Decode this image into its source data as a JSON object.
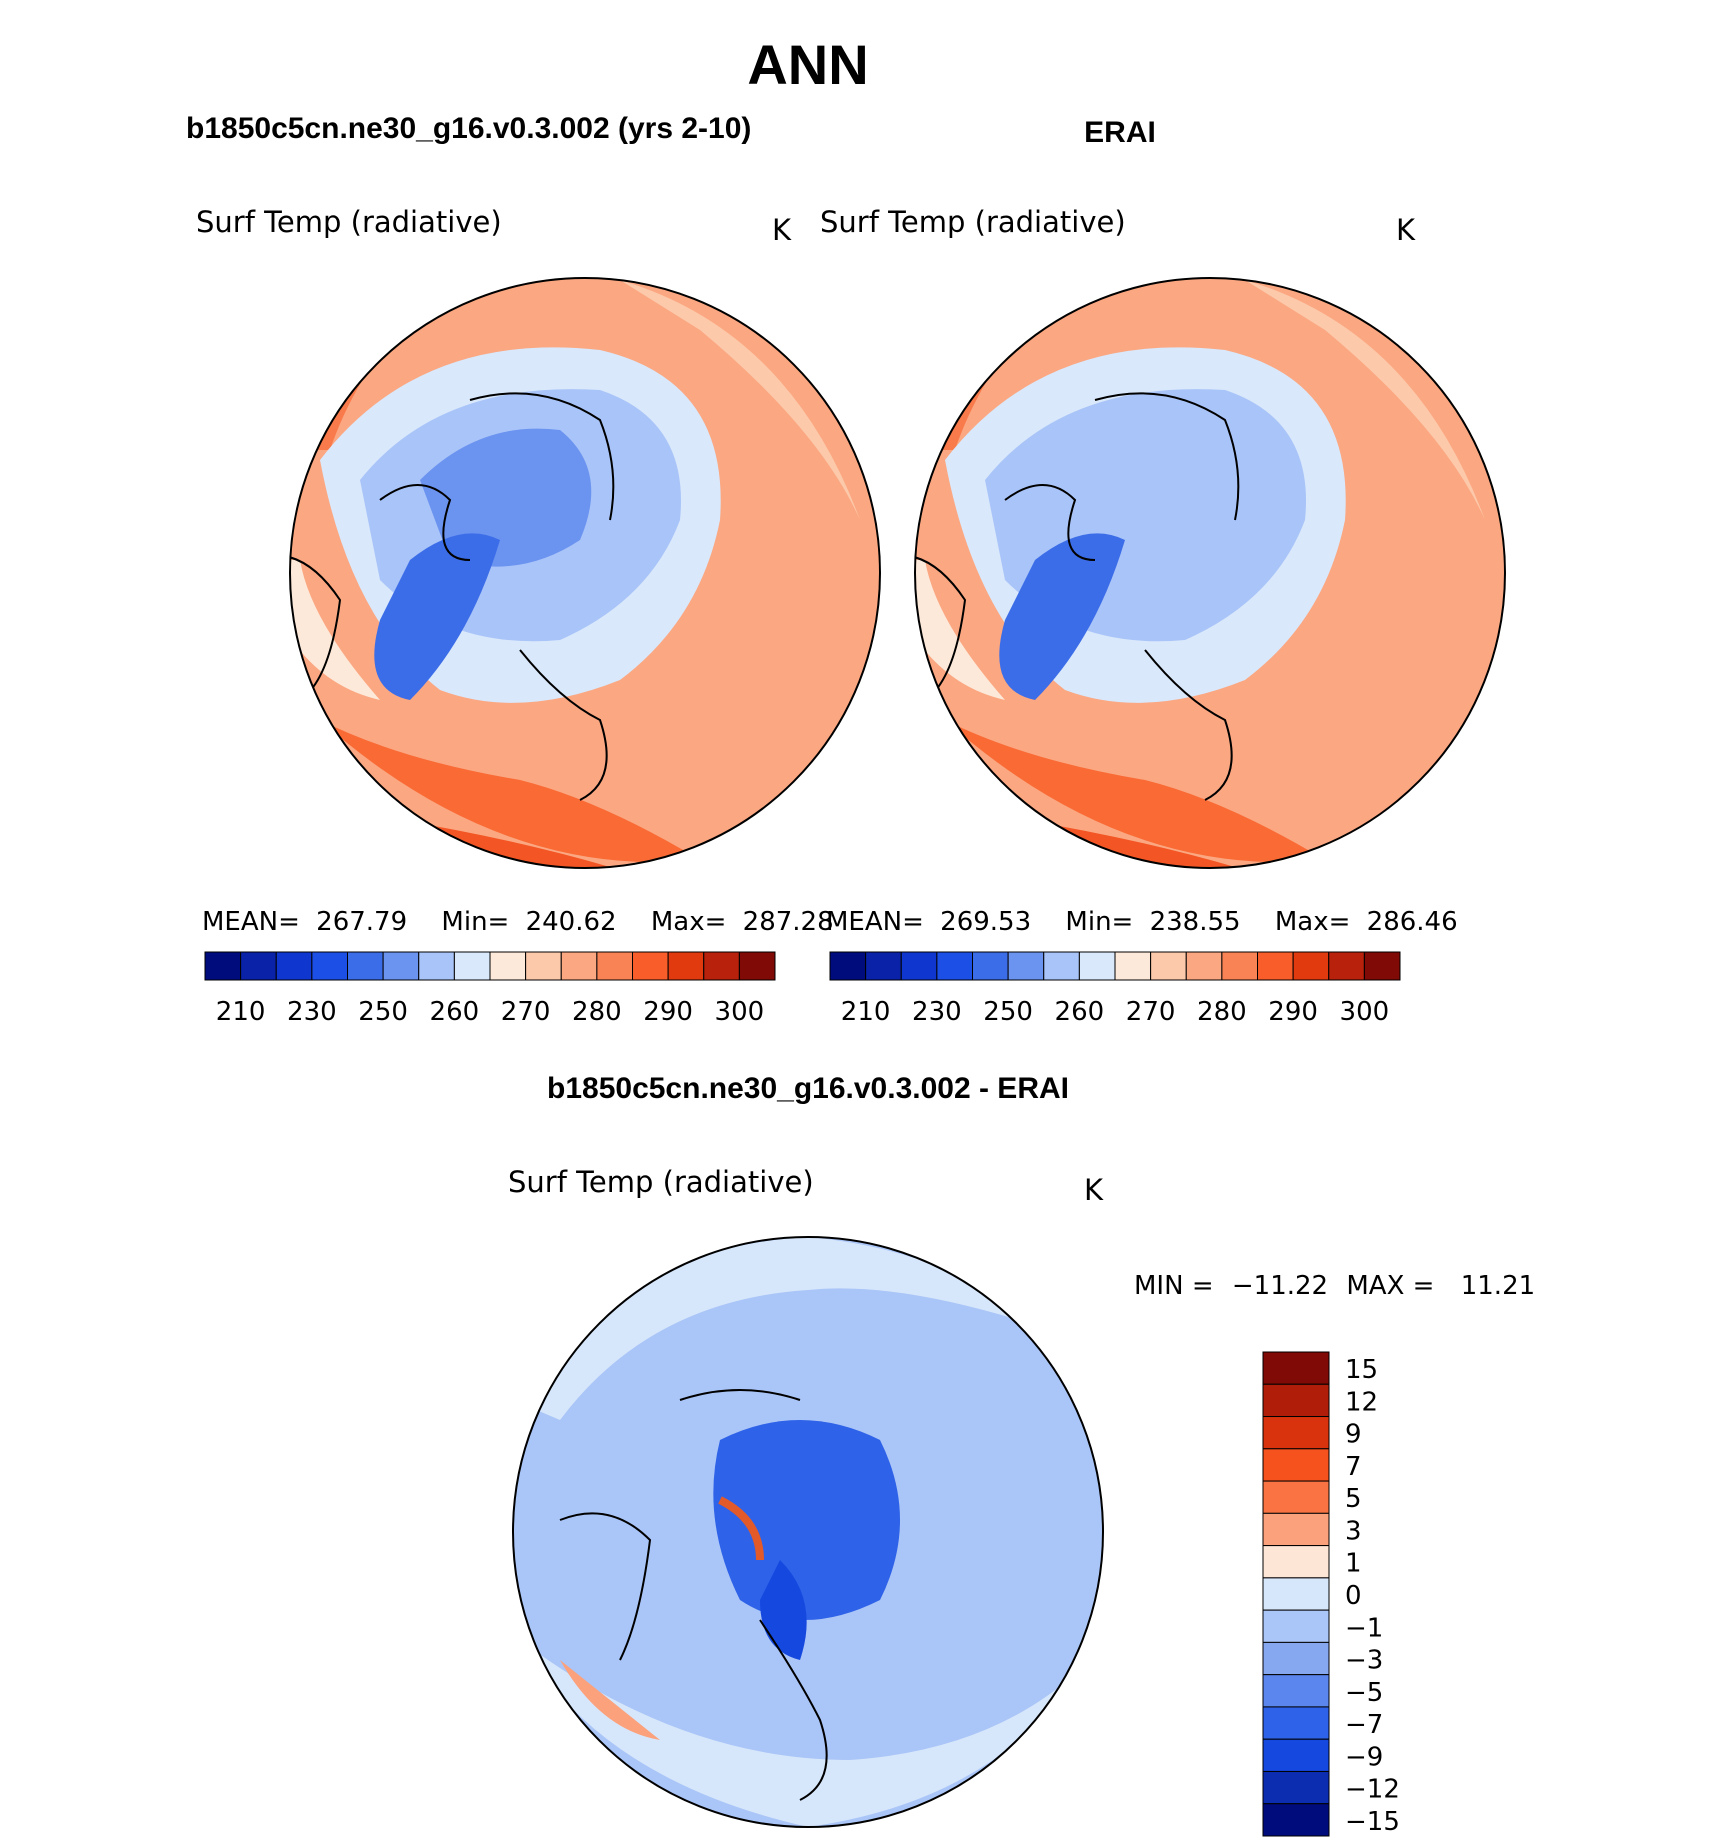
{
  "figure": {
    "season": "ANN",
    "top_left_title": "b1850c5cn.ne30_g16.v0.3.002 (yrs 2-10)",
    "top_right_title": "ERAI",
    "diff_title": "b1850c5cn.ne30_g16.v0.3.002 - ERAI"
  },
  "panels": {
    "model": {
      "variable": "Surf Temp (radiative)",
      "units": "K",
      "mean_label": "MEAN=",
      "mean": "267.79",
      "min_label": "Min=",
      "min": "240.62",
      "max_label": "Max=",
      "max": "287.28"
    },
    "obs": {
      "variable": "Surf Temp (radiative)",
      "units": "K",
      "mean_label": "MEAN=",
      "mean": "269.53",
      "min_label": "Min=",
      "min": "238.55",
      "max_label": "Max=",
      "max": "286.46"
    },
    "diff": {
      "variable": "Surf Temp (radiative)",
      "units": "K",
      "min_label": "MIN =",
      "min": "−11.22",
      "max_label": "MAX =",
      "max": "11.21"
    }
  },
  "colorbars": {
    "abs": {
      "ticks": [
        "210",
        "230",
        "250",
        "260",
        "270",
        "280",
        "290",
        "300"
      ],
      "colors": [
        "#000b7c",
        "#0a22a8",
        "#0f37cf",
        "#1c4fe6",
        "#3c6de8",
        "#6b93f0",
        "#a9c4f8",
        "#d9e8fb",
        "#fde9d9",
        "#fcc9aa",
        "#fba781",
        "#fa8355",
        "#f95e2a",
        "#e23a0f",
        "#b8210b",
        "#800a05"
      ]
    },
    "diff": {
      "ticks": [
        "15",
        "12",
        "9",
        "7",
        "5",
        "3",
        "1",
        "0",
        "−1",
        "−3",
        "−5",
        "−7",
        "−9",
        "−12",
        "−15"
      ],
      "colors": [
        "#800a05",
        "#b01e0a",
        "#d9330d",
        "#f5521e",
        "#f97442",
        "#fba17c",
        "#fde6d6",
        "#d7e7fb",
        "#aac5f7",
        "#86a8f1",
        "#5b86ed",
        "#2e62e8",
        "#1548df",
        "#0c2db0",
        "#000b7c"
      ]
    }
  }
}
